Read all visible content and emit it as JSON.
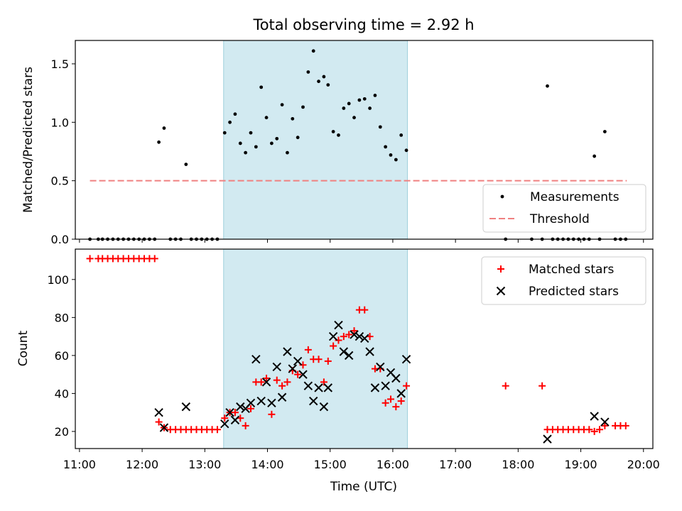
{
  "chart_data": {
    "title": "Total observing time = 2.92 h",
    "xlabel": "Time (UTC)",
    "x_ticks": [
      "11:00",
      "12:00",
      "13:00",
      "14:00",
      "15:00",
      "16:00",
      "17:00",
      "18:00",
      "19:00",
      "20:00"
    ],
    "xlim": [
      "10:56",
      "20:09"
    ],
    "observing_window": {
      "start": "13:18",
      "end": "16:14",
      "color": "#add8e6"
    },
    "panels": [
      {
        "type": "scatter",
        "ylabel": "Matched/Predicted stars",
        "ylim": [
          0,
          1.7
        ],
        "y_ticks": [
          "0.0",
          "0.5",
          "1.0",
          "1.5"
        ],
        "show_x_tick_labels": false,
        "legend": {
          "position": "lower right",
          "entries": [
            "Measurements",
            "Threshold"
          ]
        },
        "threshold": {
          "name": "Threshold",
          "value": 0.5,
          "x_start": "11:10",
          "x_end": "19:44",
          "color": "#f08080",
          "style": "dashed"
        },
        "series": [
          {
            "name": "Measurements",
            "marker": "dot",
            "color": "#000000",
            "points": [
              [
                "11:10",
                0
              ],
              [
                "11:18",
                0
              ],
              [
                "11:22",
                0
              ],
              [
                "11:27",
                0
              ],
              [
                "11:32",
                0
              ],
              [
                "11:37",
                0
              ],
              [
                "11:42",
                0
              ],
              [
                "11:47",
                0
              ],
              [
                "11:52",
                0
              ],
              [
                "11:57",
                0
              ],
              [
                "12:02",
                0
              ],
              [
                "12:07",
                0
              ],
              [
                "12:12",
                0
              ],
              [
                "12:16",
                0.83
              ],
              [
                "12:21",
                0.95
              ],
              [
                "12:27",
                0
              ],
              [
                "12:32",
                0
              ],
              [
                "12:37",
                0
              ],
              [
                "12:42",
                0.64
              ],
              [
                "12:47",
                0
              ],
              [
                "12:52",
                0
              ],
              [
                "12:57",
                0
              ],
              [
                "13:02",
                0
              ],
              [
                "13:07",
                0
              ],
              [
                "13:12",
                0
              ],
              [
                "13:19",
                0.91
              ],
              [
                "13:24",
                1.0
              ],
              [
                "13:29",
                1.07
              ],
              [
                "13:34",
                0.82
              ],
              [
                "13:39",
                0.74
              ],
              [
                "13:44",
                0.91
              ],
              [
                "13:49",
                0.79
              ],
              [
                "13:54",
                1.3
              ],
              [
                "13:59",
                1.04
              ],
              [
                "14:04",
                0.82
              ],
              [
                "14:09",
                0.86
              ],
              [
                "14:14",
                1.15
              ],
              [
                "14:19",
                0.74
              ],
              [
                "14:24",
                1.03
              ],
              [
                "14:29",
                0.87
              ],
              [
                "14:34",
                1.13
              ],
              [
                "14:39",
                1.43
              ],
              [
                "14:44",
                1.61
              ],
              [
                "14:49",
                1.35
              ],
              [
                "14:54",
                1.39
              ],
              [
                "14:58",
                1.32
              ],
              [
                "15:03",
                0.92
              ],
              [
                "15:08",
                0.89
              ],
              [
                "15:13",
                1.12
              ],
              [
                "15:18",
                1.16
              ],
              [
                "15:23",
                1.04
              ],
              [
                "15:28",
                1.19
              ],
              [
                "15:33",
                1.2
              ],
              [
                "15:38",
                1.12
              ],
              [
                "15:43",
                1.23
              ],
              [
                "15:48",
                0.96
              ],
              [
                "15:53",
                0.79
              ],
              [
                "15:58",
                0.72
              ],
              [
                "16:03",
                0.68
              ],
              [
                "16:08",
                0.89
              ],
              [
                "16:13",
                0.76
              ],
              [
                "17:48",
                0
              ],
              [
                "18:13",
                0
              ],
              [
                "18:23",
                0
              ],
              [
                "18:28",
                1.31
              ],
              [
                "18:33",
                0
              ],
              [
                "18:38",
                0
              ],
              [
                "18:43",
                0
              ],
              [
                "18:48",
                0
              ],
              [
                "18:53",
                0
              ],
              [
                "18:58",
                0
              ],
              [
                "19:03",
                0
              ],
              [
                "19:08",
                0
              ],
              [
                "19:13",
                0.71
              ],
              [
                "19:18",
                0
              ],
              [
                "19:23",
                0.92
              ],
              [
                "19:33",
                0
              ],
              [
                "19:38",
                0
              ],
              [
                "19:43",
                0
              ]
            ]
          }
        ]
      },
      {
        "type": "scatter",
        "ylabel": "Count",
        "ylim": [
          11,
          116
        ],
        "y_ticks": [
          "20",
          "40",
          "60",
          "80",
          "100"
        ],
        "show_x_tick_labels": true,
        "legend": {
          "position": "upper right",
          "entries": [
            "Matched stars",
            "Predicted stars"
          ]
        },
        "series": [
          {
            "name": "Matched stars",
            "marker": "plus",
            "color": "#ff0000",
            "points": [
              [
                "11:10",
                111
              ],
              [
                "11:18",
                111
              ],
              [
                "11:22",
                111
              ],
              [
                "11:27",
                111
              ],
              [
                "11:32",
                111
              ],
              [
                "11:37",
                111
              ],
              [
                "11:42",
                111
              ],
              [
                "11:47",
                111
              ],
              [
                "11:52",
                111
              ],
              [
                "11:57",
                111
              ],
              [
                "12:02",
                111
              ],
              [
                "12:07",
                111
              ],
              [
                "12:12",
                111
              ],
              [
                "12:16",
                25
              ],
              [
                "12:21",
                22
              ],
              [
                "12:27",
                21
              ],
              [
                "12:32",
                21
              ],
              [
                "12:37",
                21
              ],
              [
                "12:42",
                21
              ],
              [
                "12:47",
                21
              ],
              [
                "12:52",
                21
              ],
              [
                "12:57",
                21
              ],
              [
                "13:02",
                21
              ],
              [
                "13:07",
                21
              ],
              [
                "13:12",
                21
              ],
              [
                "13:19",
                27
              ],
              [
                "13:24",
                30
              ],
              [
                "13:29",
                30
              ],
              [
                "13:34",
                27
              ],
              [
                "13:39",
                23
              ],
              [
                "13:44",
                32
              ],
              [
                "13:49",
                46
              ],
              [
                "13:54",
                46
              ],
              [
                "13:59",
                48
              ],
              [
                "14:04",
                29
              ],
              [
                "14:09",
                47
              ],
              [
                "14:14",
                44
              ],
              [
                "14:19",
                46
              ],
              [
                "14:24",
                52
              ],
              [
                "14:29",
                50
              ],
              [
                "14:34",
                55
              ],
              [
                "14:39",
                63
              ],
              [
                "14:44",
                58
              ],
              [
                "14:49",
                58
              ],
              [
                "14:54",
                46
              ],
              [
                "14:58",
                57
              ],
              [
                "15:03",
                65
              ],
              [
                "15:08",
                68
              ],
              [
                "15:13",
                70
              ],
              [
                "15:18",
                71
              ],
              [
                "15:23",
                73
              ],
              [
                "15:28",
                84
              ],
              [
                "15:33",
                84
              ],
              [
                "15:38",
                70
              ],
              [
                "15:43",
                53
              ],
              [
                "15:48",
                53
              ],
              [
                "15:53",
                35
              ],
              [
                "15:58",
                37
              ],
              [
                "16:03",
                33
              ],
              [
                "16:08",
                36
              ],
              [
                "16:13",
                44
              ],
              [
                "17:48",
                44
              ],
              [
                "18:23",
                44
              ],
              [
                "18:28",
                21
              ],
              [
                "18:33",
                21
              ],
              [
                "18:38",
                21
              ],
              [
                "18:43",
                21
              ],
              [
                "18:48",
                21
              ],
              [
                "18:53",
                21
              ],
              [
                "18:58",
                21
              ],
              [
                "19:03",
                21
              ],
              [
                "19:08",
                21
              ],
              [
                "19:13",
                20
              ],
              [
                "19:18",
                21
              ],
              [
                "19:23",
                23
              ],
              [
                "19:33",
                23
              ],
              [
                "19:38",
                23
              ],
              [
                "19:43",
                23
              ]
            ]
          },
          {
            "name": "Predicted stars",
            "marker": "x",
            "color": "#000000",
            "points": [
              [
                "12:16",
                30
              ],
              [
                "12:21",
                22
              ],
              [
                "12:42",
                33
              ],
              [
                "13:19",
                24
              ],
              [
                "13:24",
                30
              ],
              [
                "13:29",
                26
              ],
              [
                "13:34",
                33
              ],
              [
                "13:39",
                32
              ],
              [
                "13:44",
                35
              ],
              [
                "13:49",
                58
              ],
              [
                "13:54",
                36
              ],
              [
                "13:59",
                46
              ],
              [
                "14:04",
                35
              ],
              [
                "14:09",
                54
              ],
              [
                "14:14",
                38
              ],
              [
                "14:19",
                62
              ],
              [
                "14:24",
                53
              ],
              [
                "14:29",
                57
              ],
              [
                "14:34",
                50
              ],
              [
                "14:39",
                44
              ],
              [
                "14:44",
                36
              ],
              [
                "14:49",
                43
              ],
              [
                "14:54",
                33
              ],
              [
                "14:58",
                43
              ],
              [
                "15:03",
                70
              ],
              [
                "15:08",
                76
              ],
              [
                "15:13",
                62
              ],
              [
                "15:18",
                60
              ],
              [
                "15:23",
                71
              ],
              [
                "15:28",
                70
              ],
              [
                "15:33",
                69
              ],
              [
                "15:38",
                62
              ],
              [
                "15:43",
                43
              ],
              [
                "15:48",
                54
              ],
              [
                "15:53",
                44
              ],
              [
                "15:58",
                51
              ],
              [
                "16:03",
                48
              ],
              [
                "16:08",
                40
              ],
              [
                "16:13",
                58
              ],
              [
                "18:28",
                16
              ],
              [
                "19:13",
                28
              ],
              [
                "19:23",
                25
              ]
            ]
          }
        ]
      }
    ]
  }
}
